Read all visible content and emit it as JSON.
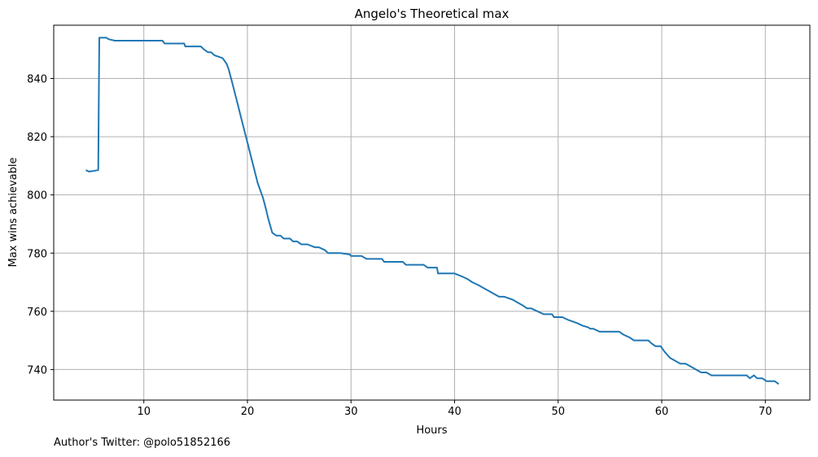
{
  "chart_data": {
    "type": "line",
    "title": "Angelo's Theoretical max",
    "xlabel": "Hours",
    "ylabel": "Max wins achievable",
    "xlim": [
      1.3,
      74.3
    ],
    "ylim": [
      729.5,
      858.3
    ],
    "xticks": [
      10,
      20,
      30,
      40,
      50,
      60,
      70
    ],
    "yticks": [
      740,
      760,
      780,
      800,
      820,
      840
    ],
    "grid": true,
    "line_color": "#1f77b4",
    "series": [
      {
        "x": [
          4.4,
          4.7,
          5.1,
          5.6,
          5.7,
          5.9,
          6.4,
          6.6,
          7.2,
          8.5,
          10.0,
          11.8,
          12.0,
          13.9,
          14.0,
          15.5,
          15.8,
          16.2,
          16.5,
          16.8,
          17.2,
          17.6,
          17.8,
          18.0,
          18.2,
          18.5,
          19.0,
          19.5,
          20.0,
          20.5,
          21.0,
          21.5,
          21.8,
          22.0,
          22.4,
          22.8,
          23.2,
          23.5,
          23.8,
          24.1,
          24.4,
          24.8,
          25.2,
          25.5,
          25.8,
          26.5,
          26.9,
          27.5,
          27.8,
          28.2,
          29.0,
          29.9,
          30.0,
          31.0,
          31.5,
          33.0,
          33.2,
          35.0,
          35.3,
          37.0,
          37.4,
          38.3,
          38.4,
          40.0,
          40.7,
          41.3,
          41.7,
          42.3,
          42.8,
          43.3,
          43.8,
          44.3,
          44.8,
          45.6,
          46.1,
          46.6,
          47.0,
          47.4,
          48.0,
          48.6,
          49.4,
          49.6,
          50.4,
          51.0,
          51.8,
          52.4,
          52.9,
          53.1,
          53.4,
          54.0,
          54.5,
          55.9,
          56.3,
          56.9,
          57.3,
          58.7,
          59.0,
          59.4,
          59.9,
          60.3,
          60.8,
          61.3,
          61.8,
          62.3,
          62.8,
          63.3,
          63.8,
          64.3,
          64.8,
          65.3,
          68.2,
          68.5,
          68.9,
          69.2,
          69.7,
          70.1,
          70.9,
          71.3
        ],
        "y": [
          808.5,
          808,
          808.2,
          808.5,
          854,
          854,
          854,
          853.5,
          853,
          853,
          853,
          853,
          852,
          852,
          851,
          851,
          850,
          849,
          849,
          848,
          847.5,
          847,
          846,
          845,
          843,
          839,
          832,
          825,
          818,
          811,
          804,
          799,
          795,
          792,
          787,
          786,
          786,
          785,
          785,
          785,
          784,
          784,
          783,
          783,
          783,
          782,
          782,
          781,
          780,
          780,
          780,
          779.5,
          779,
          779,
          778,
          778,
          777,
          777,
          776,
          776,
          775,
          775,
          773,
          773,
          772,
          771,
          770,
          769,
          768,
          767,
          766,
          765,
          765,
          764,
          763,
          762,
          761,
          761,
          760,
          759,
          759,
          758,
          758,
          757,
          756,
          755,
          754.5,
          754,
          754,
          753,
          753,
          753,
          752,
          751,
          750,
          750,
          749,
          748,
          748,
          746,
          744,
          743,
          742,
          742,
          741,
          740,
          739,
          739,
          738,
          738,
          738,
          737,
          738,
          737,
          737,
          736,
          736,
          735
        ]
      }
    ]
  },
  "footer": {
    "text": "Author's Twitter: @polo51852166"
  }
}
